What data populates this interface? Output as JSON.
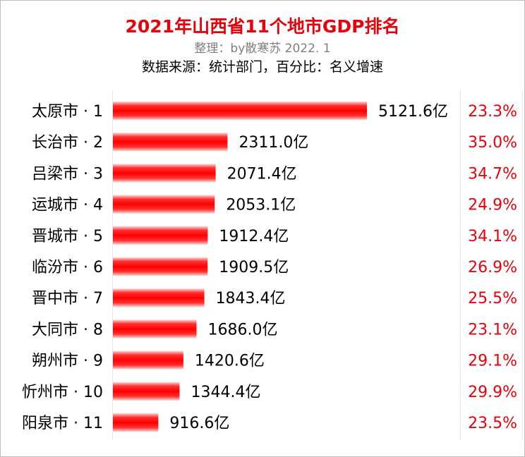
{
  "title": "2021年山西省11个地市GDP排名",
  "subtitle": "整理：by散寒苏  2022. 1",
  "source": "数据来源：统计部门，百分比：名义增速",
  "colors": {
    "bar": "#ff0000",
    "title": "#e8000b",
    "growth": "#e8000b",
    "label": "#000000"
  },
  "chart_data": {
    "type": "bar",
    "orientation": "horizontal",
    "title": "2021年山西省11个地市GDP排名",
    "categories": [
      "太原市 · 1",
      "长治市 · 2",
      "吕梁市 · 3",
      "运城市 · 4",
      "晋城市 · 5",
      "临汾市 · 6",
      "晋中市 · 7",
      "大同市 · 8",
      "朔州市 · 9",
      "忻州市 · 10",
      "阳泉市 · 11"
    ],
    "values": [
      5121.6,
      2311.0,
      2071.4,
      2053.1,
      1912.4,
      1909.5,
      1843.4,
      1686.0,
      1420.6,
      1344.4,
      916.6
    ],
    "value_labels": [
      "5121.6亿",
      "2311.0亿",
      "2071.4亿",
      "2053.1亿",
      "1912.4亿",
      "1909.5亿",
      "1843.4亿",
      "1686.0亿",
      "1420.6亿",
      "1344.4亿",
      "916.6亿"
    ],
    "growth_labels": [
      "23.3%",
      "35.0%",
      "34.7%",
      "24.9%",
      "34.1%",
      "26.9%",
      "25.5%",
      "23.1%",
      "29.1%",
      "29.9%",
      "23.5%"
    ],
    "growth": [
      23.3,
      35.0,
      34.7,
      24.9,
      34.1,
      26.9,
      25.5,
      23.1,
      29.1,
      29.9,
      23.5
    ],
    "xlabel": "",
    "ylabel": "",
    "xlim": [
      0,
      5121.6
    ],
    "grid": true,
    "legend": "none"
  }
}
